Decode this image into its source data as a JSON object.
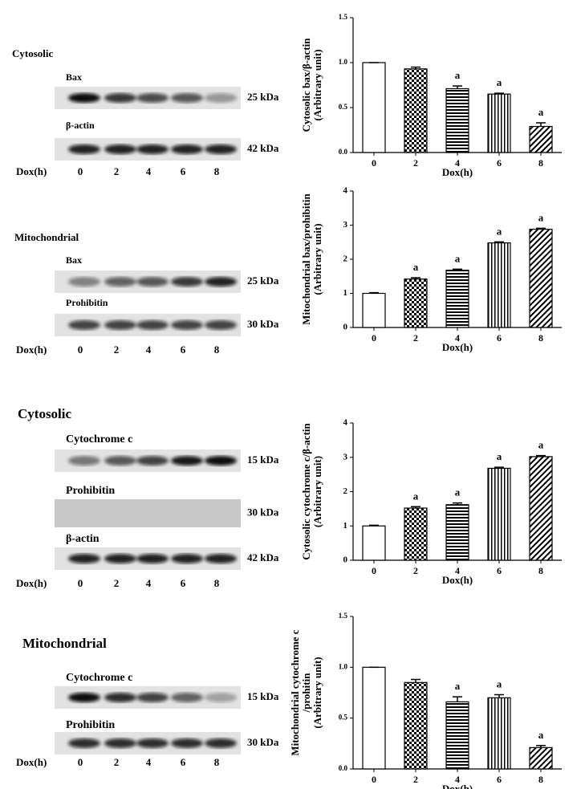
{
  "blots": [
    {
      "compartment": "Cytosolic",
      "rows": [
        {
          "protein": "Bax",
          "size": "25 kDa"
        },
        {
          "protein": "β-actin",
          "size": "42 kDa"
        }
      ],
      "xlabel": "Dox(h)",
      "lanes": [
        "0",
        "2",
        "4",
        "6",
        "8"
      ]
    },
    {
      "compartment": "Mitochondrial",
      "rows": [
        {
          "protein": "Bax",
          "size": "25 kDa"
        },
        {
          "protein": "Prohibitin",
          "size": "30 kDa"
        }
      ],
      "xlabel": "Dox(h)",
      "lanes": [
        "0",
        "2",
        "4",
        "6",
        "8"
      ]
    },
    {
      "compartment": "Cytosolic",
      "rows": [
        {
          "protein": "Cytochrome c",
          "size": "15 kDa"
        },
        {
          "protein": "Prohibitin",
          "size": "30 kDa"
        },
        {
          "protein": "β-actin",
          "size": "42 kDa"
        }
      ],
      "xlabel": "Dox(h)",
      "lanes": [
        "0",
        "2",
        "4",
        "6",
        "8"
      ]
    },
    {
      "compartment": "Mitochondrial",
      "rows": [
        {
          "protein": "Cytochrome c",
          "size": "15 kDa"
        },
        {
          "protein": "Prohibitin",
          "size": "30 kDa"
        }
      ],
      "xlabel": "Dox(h)",
      "lanes": [
        "0",
        "2",
        "4",
        "6",
        "8"
      ]
    }
  ],
  "chart_data": [
    {
      "type": "bar",
      "ylabel": [
        "Cytosolic bax/β-actin",
        "(Arbitrary unit)"
      ],
      "xlabel": "Dox(h)",
      "categories": [
        "0",
        "2",
        "4",
        "6",
        "8"
      ],
      "values": [
        1.0,
        0.93,
        0.71,
        0.65,
        0.29
      ],
      "errors": [
        0.0,
        0.02,
        0.03,
        0.01,
        0.04
      ],
      "hatches": [
        "open",
        "checkered",
        "horizontal",
        "vertical",
        "diagonal"
      ],
      "annotations": [
        {
          "index": 2,
          "text": "a"
        },
        {
          "index": 3,
          "text": "a"
        },
        {
          "index": 4,
          "text": "a"
        }
      ],
      "ylim": [
        0,
        1.5
      ],
      "yticks": [
        {
          "value": 0,
          "label": "0.0"
        },
        {
          "value": 0.5,
          "label": "0.5"
        },
        {
          "value": 1,
          "label": "1.0"
        },
        {
          "value": 1.5,
          "label": "1.5"
        }
      ]
    },
    {
      "type": "bar",
      "ylabel": [
        "Mitochondrial bax/prohibitin",
        "(Arbitrary unit)"
      ],
      "xlabel": "Dox(h)",
      "categories": [
        "0",
        "2",
        "4",
        "6",
        "8"
      ],
      "values": [
        1.0,
        1.42,
        1.68,
        2.48,
        2.88
      ],
      "errors": [
        0.02,
        0.04,
        0.03,
        0.03,
        0.03
      ],
      "hatches": [
        "open",
        "checkered",
        "horizontal",
        "vertical",
        "diagonal"
      ],
      "annotations": [
        {
          "index": 1,
          "text": "a"
        },
        {
          "index": 2,
          "text": "a"
        },
        {
          "index": 3,
          "text": "a"
        },
        {
          "index": 4,
          "text": "a"
        }
      ],
      "ylim": [
        0,
        4
      ],
      "yticks": [
        0,
        1,
        2,
        3,
        4
      ]
    },
    {
      "type": "bar",
      "ylabel": [
        "Cytosolic cytochrome c/β-actin",
        "(Arbitrary unit)"
      ],
      "xlabel": "Dox(h)",
      "categories": [
        "0",
        "2",
        "4",
        "6",
        "8"
      ],
      "values": [
        1.0,
        1.52,
        1.62,
        2.68,
        3.02
      ],
      "errors": [
        0.02,
        0.04,
        0.05,
        0.03,
        0.03
      ],
      "hatches": [
        "open",
        "checkered",
        "horizontal",
        "vertical",
        "diagonal"
      ],
      "annotations": [
        {
          "index": 1,
          "text": "a"
        },
        {
          "index": 2,
          "text": "a"
        },
        {
          "index": 3,
          "text": "a"
        },
        {
          "index": 4,
          "text": "a"
        }
      ],
      "ylim": [
        0,
        4
      ],
      "yticks": [
        0,
        1,
        2,
        3,
        4
      ]
    },
    {
      "type": "bar",
      "ylabel": [
        "Mitochondrial cytochrome c",
        "/prohitin",
        "(Arbitrary unit)"
      ],
      "xlabel": "Dox(h)",
      "categories": [
        "0",
        "2",
        "4",
        "6",
        "8"
      ],
      "values": [
        1.0,
        0.85,
        0.66,
        0.7,
        0.21
      ],
      "errors": [
        0.0,
        0.03,
        0.05,
        0.03,
        0.02
      ],
      "hatches": [
        "open",
        "checkered",
        "horizontal",
        "vertical",
        "diagonal"
      ],
      "annotations": [
        {
          "index": 2,
          "text": "a"
        },
        {
          "index": 3,
          "text": "a"
        },
        {
          "index": 4,
          "text": "a"
        }
      ],
      "ylim": [
        0,
        1.5
      ],
      "yticks": [
        {
          "value": 0,
          "label": "0.0"
        },
        {
          "value": 0.5,
          "label": "0.5"
        },
        {
          "value": 1,
          "label": "1.0"
        },
        {
          "value": 1.5,
          "label": "1.5"
        }
      ]
    }
  ]
}
